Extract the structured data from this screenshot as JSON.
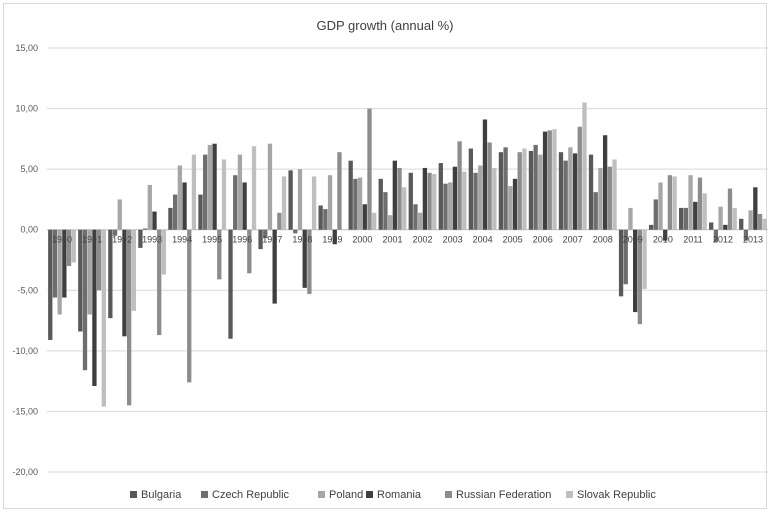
{
  "chart_data": {
    "type": "bar",
    "title": "GDP growth (annual %)",
    "xlabel": "",
    "ylabel": "",
    "ylim": [
      -20,
      15
    ],
    "yticks": [
      15,
      10,
      5,
      0,
      -5,
      -10,
      -15,
      -20
    ],
    "ytick_labels": [
      "15,00",
      "10,00",
      "5,00",
      "0,00",
      "-5,00",
      "-10,00",
      "-15,00",
      "-20,00"
    ],
    "grid": true,
    "legend_position": "bottom",
    "categories": [
      "1990",
      "1991",
      "1992",
      "1993",
      "1994",
      "1995",
      "1996",
      "1997",
      "1998",
      "1999",
      "2000",
      "2001",
      "2002",
      "2003",
      "2004",
      "2005",
      "2006",
      "2007",
      "2008",
      "2009",
      "2010",
      "2011",
      "2012",
      "2013"
    ],
    "series": [
      {
        "name": "Bulgaria",
        "color": "#595959",
        "values": [
          -9.1,
          -8.4,
          -7.3,
          -1.5,
          1.8,
          2.9,
          -9.0,
          -1.6,
          4.9,
          2.0,
          5.7,
          4.2,
          4.7,
          5.5,
          6.7,
          6.4,
          6.5,
          6.4,
          6.2,
          -5.5,
          0.4,
          1.8,
          0.6,
          0.9
        ]
      },
      {
        "name": "Czech Republic",
        "color": "#6e6e6e",
        "values": [
          -5.6,
          -11.6,
          -0.5,
          0.1,
          2.9,
          6.2,
          4.5,
          -0.7,
          -0.3,
          1.7,
          4.2,
          3.1,
          2.1,
          3.8,
          4.7,
          6.8,
          7.0,
          5.7,
          3.1,
          -4.5,
          2.5,
          1.8,
          -1.0,
          -0.9
        ]
      },
      {
        "name": "Poland",
        "color": "#a6a6a6",
        "values": [
          -7.0,
          -7.0,
          2.5,
          3.7,
          5.3,
          7.0,
          6.2,
          7.1,
          5.0,
          4.5,
          4.3,
          1.2,
          1.4,
          3.9,
          5.3,
          3.6,
          6.2,
          6.8,
          5.1,
          1.8,
          3.9,
          4.5,
          1.9,
          1.6
        ]
      },
      {
        "name": "Romania",
        "color": "#3f3f3f",
        "values": [
          -5.6,
          -12.9,
          -8.8,
          1.5,
          3.9,
          7.1,
          3.9,
          -6.1,
          -4.8,
          -1.2,
          2.1,
          5.7,
          5.1,
          5.2,
          9.1,
          4.2,
          8.1,
          6.3,
          7.8,
          -6.8,
          -0.9,
          2.3,
          0.4,
          3.5
        ]
      },
      {
        "name": "Russian Federation",
        "color": "#8c8c8c",
        "values": [
          -3.0,
          -5.0,
          -14.5,
          -8.7,
          -12.6,
          -4.1,
          -3.6,
          1.4,
          -5.3,
          6.4,
          10.0,
          5.1,
          4.7,
          7.3,
          7.2,
          6.4,
          8.2,
          8.5,
          5.2,
          -7.8,
          4.5,
          4.3,
          3.4,
          1.3
        ]
      },
      {
        "name": "Slovak Republic",
        "color": "#bfbfbf",
        "values": [
          -2.7,
          -14.6,
          -6.7,
          -3.7,
          6.2,
          5.8,
          6.9,
          4.4,
          4.4,
          0.0,
          1.4,
          3.5,
          4.6,
          4.8,
          5.1,
          6.7,
          8.3,
          10.5,
          5.8,
          -4.9,
          4.4,
          3.0,
          1.8,
          0.9
        ]
      }
    ]
  }
}
